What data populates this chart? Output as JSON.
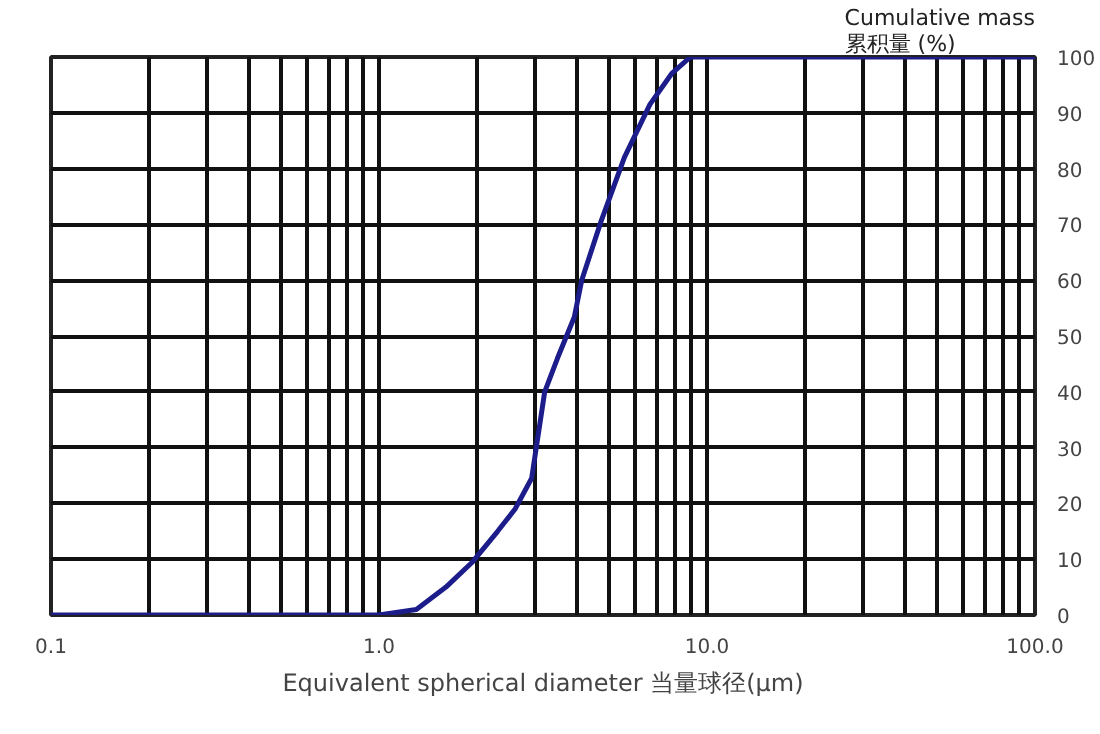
{
  "chart_data": {
    "type": "line",
    "xlabel": "Equivalent spherical diameter 当量球径(μm)",
    "ylabel": "Cumulative mass\n累积量 (%)",
    "log": "x",
    "grid": true,
    "marker": "none",
    "line_style": "solid",
    "xlim": [
      0.1,
      100
    ],
    "ylim": [
      0,
      100
    ],
    "xticks": [
      {
        "value": 0.1,
        "label": "0.1"
      },
      {
        "value": 0.2,
        "label": null
      },
      {
        "value": 0.3,
        "label": null
      },
      {
        "value": 0.4,
        "label": null
      },
      {
        "value": 0.5,
        "label": null
      },
      {
        "value": 0.6,
        "label": null
      },
      {
        "value": 0.7,
        "label": null
      },
      {
        "value": 0.8,
        "label": null
      },
      {
        "value": 0.9,
        "label": null
      },
      {
        "value": 1,
        "label": "1.0"
      },
      {
        "value": 2,
        "label": null
      },
      {
        "value": 3,
        "label": null
      },
      {
        "value": 4,
        "label": null
      },
      {
        "value": 5,
        "label": null
      },
      {
        "value": 6,
        "label": null
      },
      {
        "value": 7,
        "label": null
      },
      {
        "value": 8,
        "label": null
      },
      {
        "value": 9,
        "label": null
      },
      {
        "value": 10,
        "label": "10.0"
      },
      {
        "value": 20,
        "label": null
      },
      {
        "value": 30,
        "label": null
      },
      {
        "value": 40,
        "label": null
      },
      {
        "value": 50,
        "label": null
      },
      {
        "value": 60,
        "label": null
      },
      {
        "value": 70,
        "label": null
      },
      {
        "value": 80,
        "label": null
      },
      {
        "value": 90,
        "label": null
      },
      {
        "value": 100,
        "label": "100.0"
      }
    ],
    "yticks": [
      0,
      10,
      20,
      30,
      40,
      50,
      60,
      70,
      80,
      90,
      100
    ],
    "series": [
      {
        "color": "#1c1c8a",
        "x": [
          0.1,
          1.0,
          1.3,
          1.6,
          1.92,
          2.3,
          2.6,
          2.92,
          2.99,
          3.2,
          3.5,
          3.94,
          4.15,
          4.75,
          5.6,
          6.7,
          7.8,
          8.9,
          100
        ],
        "values": [
          0,
          0,
          1,
          5,
          9.4,
          15,
          19,
          24.5,
          28.5,
          40,
          46,
          53.4,
          60,
          70.5,
          82,
          91.5,
          97,
          100,
          100
        ]
      }
    ]
  }
}
